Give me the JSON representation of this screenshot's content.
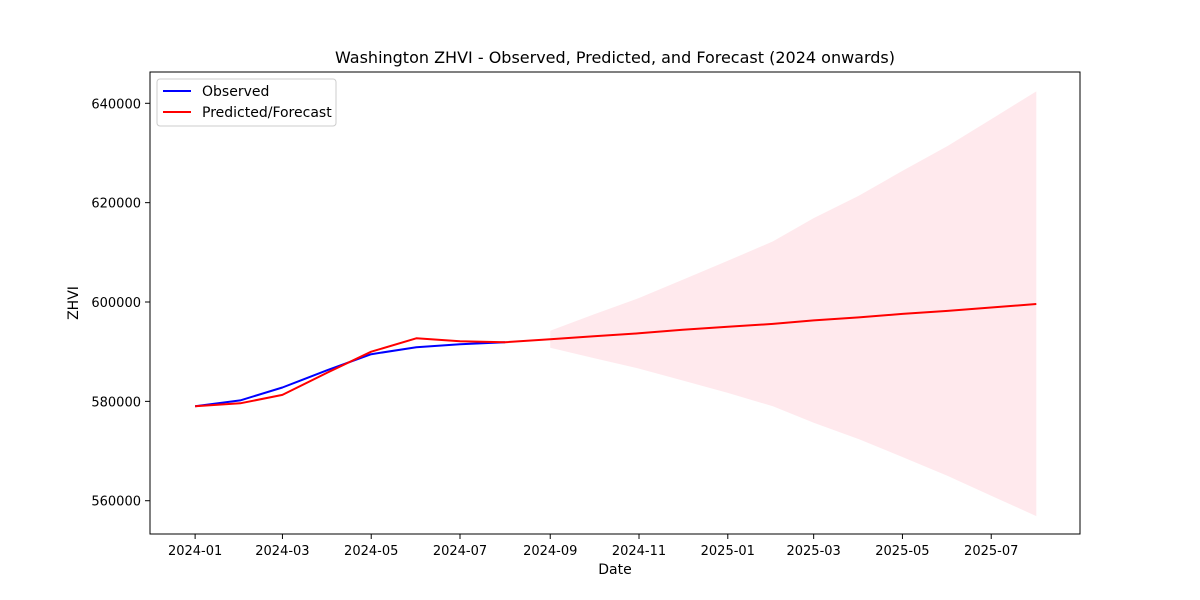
{
  "chart_data": {
    "type": "line",
    "title": "Washington ZHVI - Observed, Predicted, and Forecast (2024 onwards)",
    "xlabel": "Date",
    "ylabel": "ZHVI",
    "x_axis_type": "date",
    "xlim": [
      "2023-12-01",
      "2025-08-31"
    ],
    "ylim": [
      553300,
      646300
    ],
    "x_ticks": [
      "2024-01",
      "2024-03",
      "2024-05",
      "2024-07",
      "2024-09",
      "2024-11",
      "2025-01",
      "2025-03",
      "2025-05",
      "2025-07"
    ],
    "y_ticks": [
      560000,
      580000,
      600000,
      620000,
      640000
    ],
    "grid": false,
    "legend_position": "top-left",
    "series": [
      {
        "name": "Observed",
        "color": "#0000ff",
        "x": [
          "2024-01-01",
          "2024-02-01",
          "2024-03-01",
          "2024-04-01",
          "2024-05-01",
          "2024-06-01",
          "2024-07-01",
          "2024-08-01"
        ],
        "values": [
          579000,
          580200,
          582800,
          586300,
          589500,
          590900,
          591500,
          591900
        ]
      },
      {
        "name": "Predicted/Forecast",
        "color": "#ff0000",
        "x": [
          "2024-01-01",
          "2024-02-01",
          "2024-03-01",
          "2024-04-01",
          "2024-05-01",
          "2024-06-01",
          "2024-07-01",
          "2024-08-01",
          "2024-09-01",
          "2024-10-01",
          "2024-11-01",
          "2024-12-01",
          "2025-01-01",
          "2025-02-01",
          "2025-03-01",
          "2025-04-01",
          "2025-05-01",
          "2025-06-01",
          "2025-07-01",
          "2025-08-01"
        ],
        "values": [
          579000,
          579600,
          581300,
          585800,
          590000,
          592700,
          592100,
          591900,
          592500,
          593100,
          593700,
          594400,
          595000,
          595600,
          596300,
          596900,
          597600,
          598200,
          598900,
          599600
        ]
      }
    ],
    "confidence_band": {
      "color": "#ffc0cb",
      "opacity": 0.35,
      "x": [
        "2024-09-01",
        "2024-10-01",
        "2024-11-01",
        "2024-12-01",
        "2025-01-01",
        "2025-02-01",
        "2025-03-01",
        "2025-04-01",
        "2025-05-01",
        "2025-06-01",
        "2025-07-01",
        "2025-08-01"
      ],
      "lower": [
        590800,
        588700,
        586600,
        584200,
        581700,
        579000,
        575700,
        572400,
        568800,
        565000,
        561000,
        556900
      ],
      "upper": [
        594200,
        597500,
        600800,
        604500,
        608300,
        612200,
        616900,
        621400,
        626400,
        631400,
        636800,
        642400
      ]
    }
  }
}
